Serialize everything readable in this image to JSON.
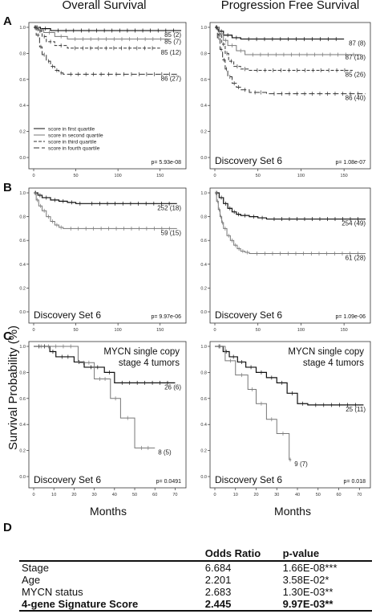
{
  "column_titles": [
    "Overall Survival",
    "Progression Free Survival"
  ],
  "panel_letters": [
    "A",
    "B",
    "C",
    "D"
  ],
  "y_axis_label": "Survival Probability (%)",
  "x_axis_label": "Months",
  "chart_data": [
    {
      "type": "line",
      "panel": "A",
      "column": "Overall Survival",
      "xlim": [
        0,
        175
      ],
      "ylim": [
        0,
        1.0
      ],
      "xticks": [
        "0",
        "50",
        "100",
        "150"
      ],
      "yticks": [
        "0.0",
        "0.2",
        "0.4",
        "0.6",
        "0.8",
        "1.0"
      ],
      "legend": [
        "score in first quartile",
        "score in second quartile",
        "score in third quartile",
        "score in fourth quartile"
      ],
      "legend_position": "bottom-left",
      "p_value": "p= 5.93e-08",
      "series": [
        {
          "name": "score in first quartile",
          "label": "85 (2)",
          "style": "solid",
          "x": [
            0,
            8,
            20,
            175
          ],
          "y": [
            1.0,
            0.99,
            0.975,
            0.975
          ]
        },
        {
          "name": "score in second quartile",
          "label": "85 (7)",
          "style": "solid-light",
          "x": [
            0,
            6,
            12,
            25,
            40,
            160
          ],
          "y": [
            1.0,
            0.98,
            0.96,
            0.93,
            0.91,
            0.91
          ]
        },
        {
          "name": "score in third quartile",
          "label": "85 (12)",
          "style": "dashed",
          "x": [
            0,
            5,
            10,
            15,
            25,
            40,
            150
          ],
          "y": [
            1.0,
            0.97,
            0.93,
            0.89,
            0.86,
            0.84,
            0.84
          ]
        },
        {
          "name": "score in fourth quartile",
          "label": "86 (27)",
          "style": "dashed-long",
          "x": [
            0,
            3,
            7,
            10,
            15,
            20,
            25,
            30,
            35,
            170
          ],
          "y": [
            1.0,
            0.94,
            0.85,
            0.79,
            0.74,
            0.7,
            0.67,
            0.65,
            0.64,
            0.64
          ]
        }
      ]
    },
    {
      "type": "line",
      "panel": "A",
      "column": "Progression Free Survival",
      "xlim": [
        0,
        175
      ],
      "ylim": [
        0,
        1.0
      ],
      "xticks": [
        "0",
        "50",
        "100",
        "150"
      ],
      "yticks": [
        "0.0",
        "0.2",
        "0.4",
        "0.6",
        "0.8",
        "1.0"
      ],
      "annotation": "Discovery Set 6",
      "p_value": "p= 1.08e-07",
      "series": [
        {
          "label": "87 (8)",
          "style": "solid",
          "x": [
            0,
            5,
            10,
            20,
            30,
            150
          ],
          "y": [
            1.0,
            0.97,
            0.94,
            0.92,
            0.91,
            0.91
          ]
        },
        {
          "label": "87 (18)",
          "style": "solid-light",
          "x": [
            0,
            5,
            10,
            15,
            25,
            35,
            170
          ],
          "y": [
            1.0,
            0.95,
            0.9,
            0.86,
            0.82,
            0.79,
            0.79
          ]
        },
        {
          "label": "85 (26)",
          "style": "dashed",
          "x": [
            0,
            4,
            8,
            12,
            16,
            22,
            30,
            40,
            160
          ],
          "y": [
            1.0,
            0.94,
            0.87,
            0.8,
            0.74,
            0.7,
            0.68,
            0.67,
            0.67
          ]
        },
        {
          "label": "86 (40)",
          "style": "dashed-long",
          "x": [
            0,
            3,
            6,
            9,
            12,
            15,
            20,
            25,
            30,
            40,
            60,
            175
          ],
          "y": [
            1.0,
            0.92,
            0.83,
            0.75,
            0.68,
            0.62,
            0.57,
            0.54,
            0.52,
            0.5,
            0.49,
            0.49
          ]
        }
      ]
    },
    {
      "type": "line",
      "panel": "B",
      "column": "Overall Survival",
      "xlim": [
        0,
        175
      ],
      "ylim": [
        0,
        1.0
      ],
      "xticks": [
        "0",
        "50",
        "100",
        "150"
      ],
      "yticks": [
        "0.0",
        "0.2",
        "0.4",
        "0.6",
        "0.8",
        "1.0"
      ],
      "annotation": "Discovery Set 6",
      "p_value": "p= 9.97e-06",
      "series": [
        {
          "label": "252 (18)",
          "style": "solid",
          "x": [
            0,
            5,
            10,
            20,
            30,
            40,
            50,
            60,
            170
          ],
          "y": [
            1.0,
            0.98,
            0.96,
            0.94,
            0.93,
            0.92,
            0.91,
            0.91,
            0.91
          ]
        },
        {
          "label": "59 (15)",
          "style": "solid-light",
          "x": [
            0,
            3,
            6,
            10,
            15,
            20,
            25,
            30,
            35,
            170
          ],
          "y": [
            1.0,
            0.94,
            0.89,
            0.85,
            0.8,
            0.76,
            0.73,
            0.71,
            0.7,
            0.7
          ]
        }
      ]
    },
    {
      "type": "line",
      "panel": "B",
      "column": "Progression Free Survival",
      "xlim": [
        0,
        175
      ],
      "ylim": [
        0,
        1.0
      ],
      "xticks": [
        "0",
        "50",
        "100",
        "150"
      ],
      "yticks": [
        "0.0",
        "0.2",
        "0.4",
        "0.6",
        "0.8",
        "1.0"
      ],
      "annotation": "Discovery Set 6",
      "p_value": "p= 1.09e-06",
      "series": [
        {
          "label": "254 (49)",
          "style": "solid",
          "x": [
            0,
            5,
            10,
            15,
            20,
            25,
            30,
            40,
            50,
            60,
            175
          ],
          "y": [
            1.0,
            0.96,
            0.91,
            0.87,
            0.84,
            0.82,
            0.81,
            0.8,
            0.79,
            0.78,
            0.78
          ]
        },
        {
          "label": "61 (28)",
          "style": "solid-light",
          "x": [
            0,
            2,
            4,
            6,
            8,
            10,
            14,
            18,
            22,
            26,
            30,
            35,
            40,
            175
          ],
          "y": [
            1.0,
            0.93,
            0.86,
            0.8,
            0.75,
            0.7,
            0.64,
            0.6,
            0.56,
            0.53,
            0.51,
            0.5,
            0.49,
            0.49
          ]
        }
      ]
    },
    {
      "type": "line",
      "panel": "C",
      "column": "Overall Survival",
      "xlim": [
        0,
        73
      ],
      "ylim": [
        0,
        1.0
      ],
      "xticks": [
        "0",
        "10",
        "20",
        "30",
        "40",
        "50",
        "60",
        "70"
      ],
      "yticks": [
        "0.0",
        "0.2",
        "0.4",
        "0.6",
        "0.8",
        "1.0"
      ],
      "subgroup": [
        "MYCN single copy",
        "stage 4 tumors"
      ],
      "annotation": "Discovery Set 6",
      "p_value": "p= 0.0491",
      "series": [
        {
          "label": "26 (6)",
          "style": "solid",
          "x": [
            0,
            8,
            11,
            20,
            25,
            35,
            40,
            70
          ],
          "y": [
            1.0,
            0.96,
            0.92,
            0.88,
            0.84,
            0.8,
            0.72,
            0.72
          ]
        },
        {
          "label": "8 (5)",
          "style": "solid-light",
          "x": [
            0,
            22,
            30,
            38,
            43,
            50,
            60
          ],
          "y": [
            1.0,
            0.875,
            0.75,
            0.6,
            0.45,
            0.22,
            0.22
          ]
        }
      ]
    },
    {
      "type": "line",
      "panel": "C",
      "column": "Progression Free Survival",
      "xlim": [
        0,
        73
      ],
      "ylim": [
        0,
        1.0
      ],
      "xticks": [
        "0",
        "10",
        "20",
        "30",
        "40",
        "50",
        "60",
        "70"
      ],
      "yticks": [
        "0.0",
        "0.2",
        "0.4",
        "0.6",
        "0.8",
        "1.0"
      ],
      "subgroup": [
        "MYCN single copy",
        "stage 4 tumors"
      ],
      "annotation": "Discovery Set 6",
      "p_value": "p= 0.018",
      "series": [
        {
          "label": "25 (11)",
          "style": "solid",
          "x": [
            0,
            4,
            7,
            11,
            15,
            20,
            25,
            30,
            35,
            40,
            45,
            72
          ],
          "y": [
            1.0,
            0.96,
            0.92,
            0.88,
            0.84,
            0.8,
            0.76,
            0.72,
            0.64,
            0.56,
            0.55,
            0.55
          ]
        },
        {
          "label": "9 (7)",
          "style": "solid-light",
          "x": [
            0,
            5,
            10,
            16,
            20,
            25,
            30,
            36,
            37
          ],
          "y": [
            1.0,
            0.89,
            0.78,
            0.67,
            0.56,
            0.44,
            0.33,
            0.13,
            0.13
          ]
        }
      ]
    }
  ],
  "table_d": {
    "headers": [
      "",
      "Odds Ratio",
      "p-value"
    ],
    "rows": [
      [
        "Stage",
        "6.684",
        "1.66E-08***"
      ],
      [
        "Age",
        "2.201",
        "3.58E-02*"
      ],
      [
        "MYCN status",
        "2.683",
        "1.30E-03**"
      ],
      [
        "4-gene Signature Score",
        "2.445",
        "9.97E-03**"
      ]
    ]
  }
}
